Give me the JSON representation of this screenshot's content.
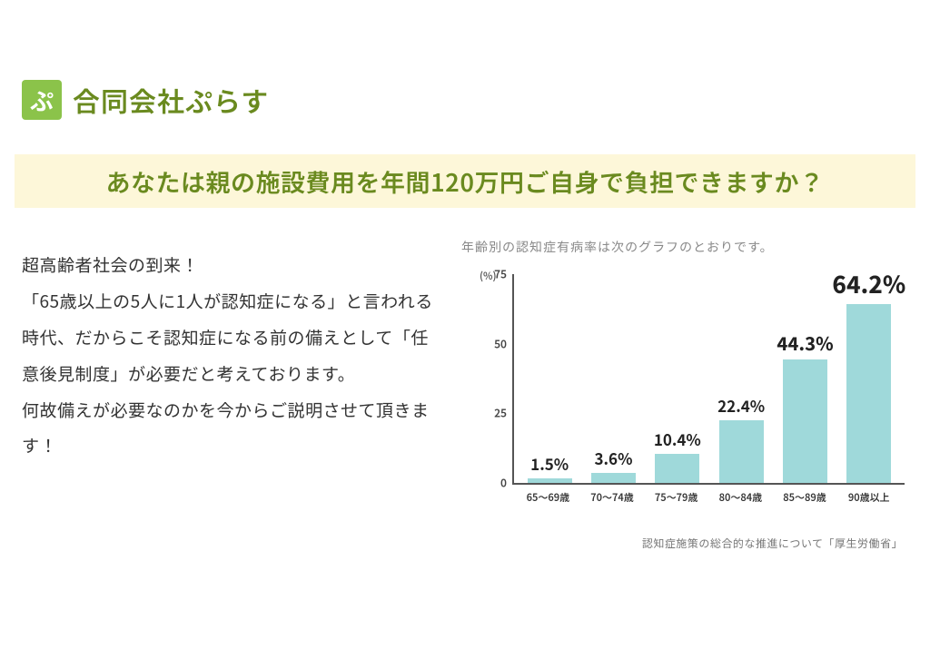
{
  "brand": {
    "logo_glyph": "ぷ",
    "logo_bg": "#8bc34a",
    "logo_fg": "#ffffff",
    "name": "合同会社ぷらす",
    "name_color": "#6a8a1f"
  },
  "headline": {
    "text": "あなたは親の施設費用を年間120万円ご自身で負担できますか？",
    "bg": "#fdf7d9",
    "color": "#6a8a1f",
    "fontsize": 27
  },
  "body": {
    "text": "超高齢者社会の到来！\n「65歳以上の5人に1人が認知症になる」と言われる時代、だからこそ認知症になる前の備えとして「任意後見制度」が必要だと考えております。\n何故備えが必要なのかを今からご説明させて頂きます！",
    "color": "#333333",
    "fontsize": 19,
    "line_height": 2.1
  },
  "chart": {
    "title": "年齢別の認知症有病率は次のグラフのとおりです。",
    "title_color": "#888888",
    "title_fontsize": 14,
    "type": "bar",
    "y_unit_label": "(%)",
    "categories": [
      "65〜69歳",
      "70〜74歳",
      "75〜79歳",
      "80〜84歳",
      "85〜89歳",
      "90歳以上"
    ],
    "values": [
      1.5,
      3.6,
      10.4,
      22.4,
      44.3,
      64.2
    ],
    "value_labels": [
      "1.5%",
      "3.6%",
      "10.4%",
      "22.4%",
      "44.3%",
      "64.2%"
    ],
    "bar_color": "#9fd9da",
    "axis_color": "#555555",
    "ylim": [
      0,
      75
    ],
    "yticks": [
      0,
      25,
      50,
      75
    ],
    "value_label_fontsize": 17,
    "value_label_color": "#222222",
    "xtick_fontsize": 11,
    "bar_width_ratio": 0.7,
    "background_color": "#ffffff"
  },
  "source": {
    "text": "認知症施策の総合的な推進について「厚生労働省」",
    "color": "#777777",
    "fontsize": 12
  }
}
